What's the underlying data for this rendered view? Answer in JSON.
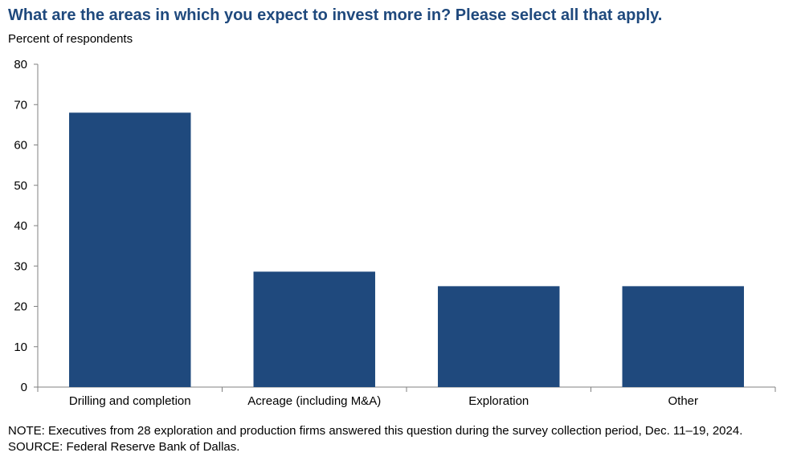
{
  "title": "What are the areas in which you expect to invest more in? Please select all that apply.",
  "chart_data": {
    "type": "bar",
    "ylabel": "Percent of respondents",
    "xlabel": "",
    "categories": [
      "Drilling and completion",
      "Acreage (including M&A)",
      "Exploration",
      "Other"
    ],
    "values": [
      68,
      28.6,
      25,
      25
    ],
    "ylim": [
      0,
      80
    ],
    "yticks": [
      0,
      10,
      20,
      30,
      40,
      50,
      60,
      70,
      80
    ],
    "grid": false,
    "bar_color": "#1f497d",
    "title_color": "#1f497d"
  },
  "note": "NOTE: Executives from 28 exploration and production firms answered this question during the survey collection period, Dec. 11–19, 2024.",
  "source": "SOURCE: Federal Reserve Bank of Dallas."
}
